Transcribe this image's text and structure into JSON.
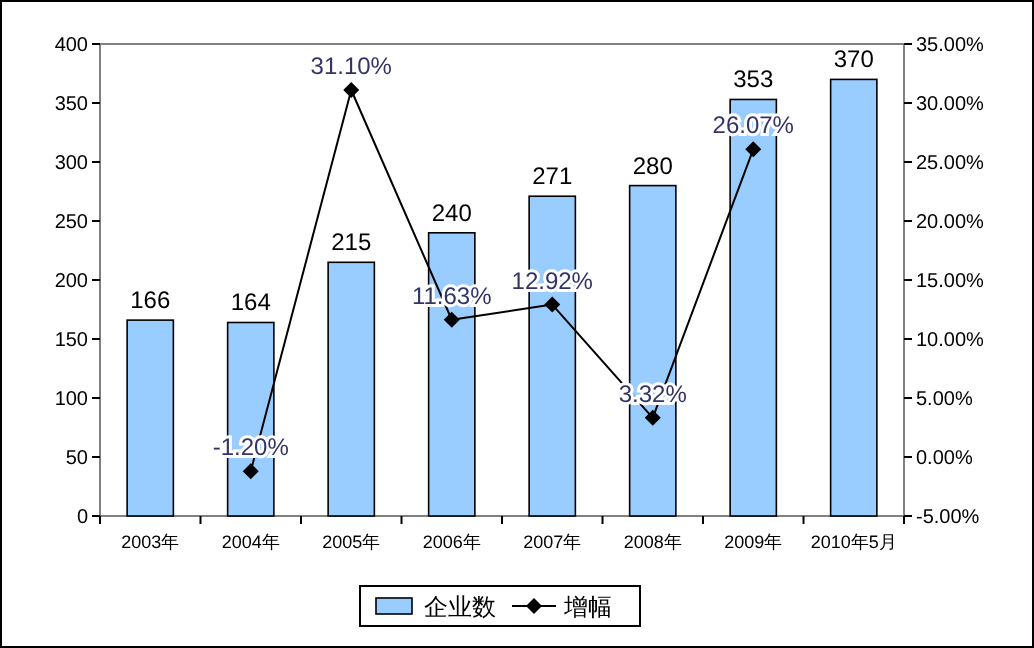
{
  "chart_data": {
    "type": "bar",
    "categories": [
      "2003年",
      "2004年",
      "2005年",
      "2006年",
      "2007年",
      "2008年",
      "2009年",
      "2010年5月"
    ],
    "series": [
      {
        "name": "企业数",
        "color": "#99ccff",
        "values": [
          166,
          164,
          215,
          240,
          271,
          280,
          353,
          370
        ],
        "value_labels": [
          "166",
          "164",
          "215",
          "240",
          "271",
          "280",
          "353",
          "370"
        ]
      },
      {
        "name": "增幅",
        "type": "line",
        "axis": "y2",
        "color": "#000000",
        "values": [
          null,
          -1.2,
          31.1,
          11.63,
          12.92,
          3.32,
          26.07,
          null
        ],
        "value_labels": [
          null,
          "-1.20%",
          "31.10%",
          "11.63%",
          "12.92%",
          "3.32%",
          "26.07%",
          null
        ]
      }
    ],
    "ylim": [
      0,
      400
    ],
    "yticks": [
      0,
      50,
      100,
      150,
      200,
      250,
      300,
      350,
      400
    ],
    "y2lim": [
      -5,
      35
    ],
    "y2ticks": [
      {
        "value": -5,
        "label": "-5.00%"
      },
      {
        "value": 0,
        "label": "0.00%"
      },
      {
        "value": 5,
        "label": "5.00%"
      },
      {
        "value": 10,
        "label": "10.00%"
      },
      {
        "value": 15,
        "label": "15.00%"
      },
      {
        "value": 20,
        "label": "20.00%"
      },
      {
        "value": 25,
        "label": "25.00%"
      },
      {
        "value": 30,
        "label": "30.00%"
      },
      {
        "value": 35,
        "label": "35.00%"
      }
    ],
    "marker": "diamond",
    "legend": "bottom"
  }
}
